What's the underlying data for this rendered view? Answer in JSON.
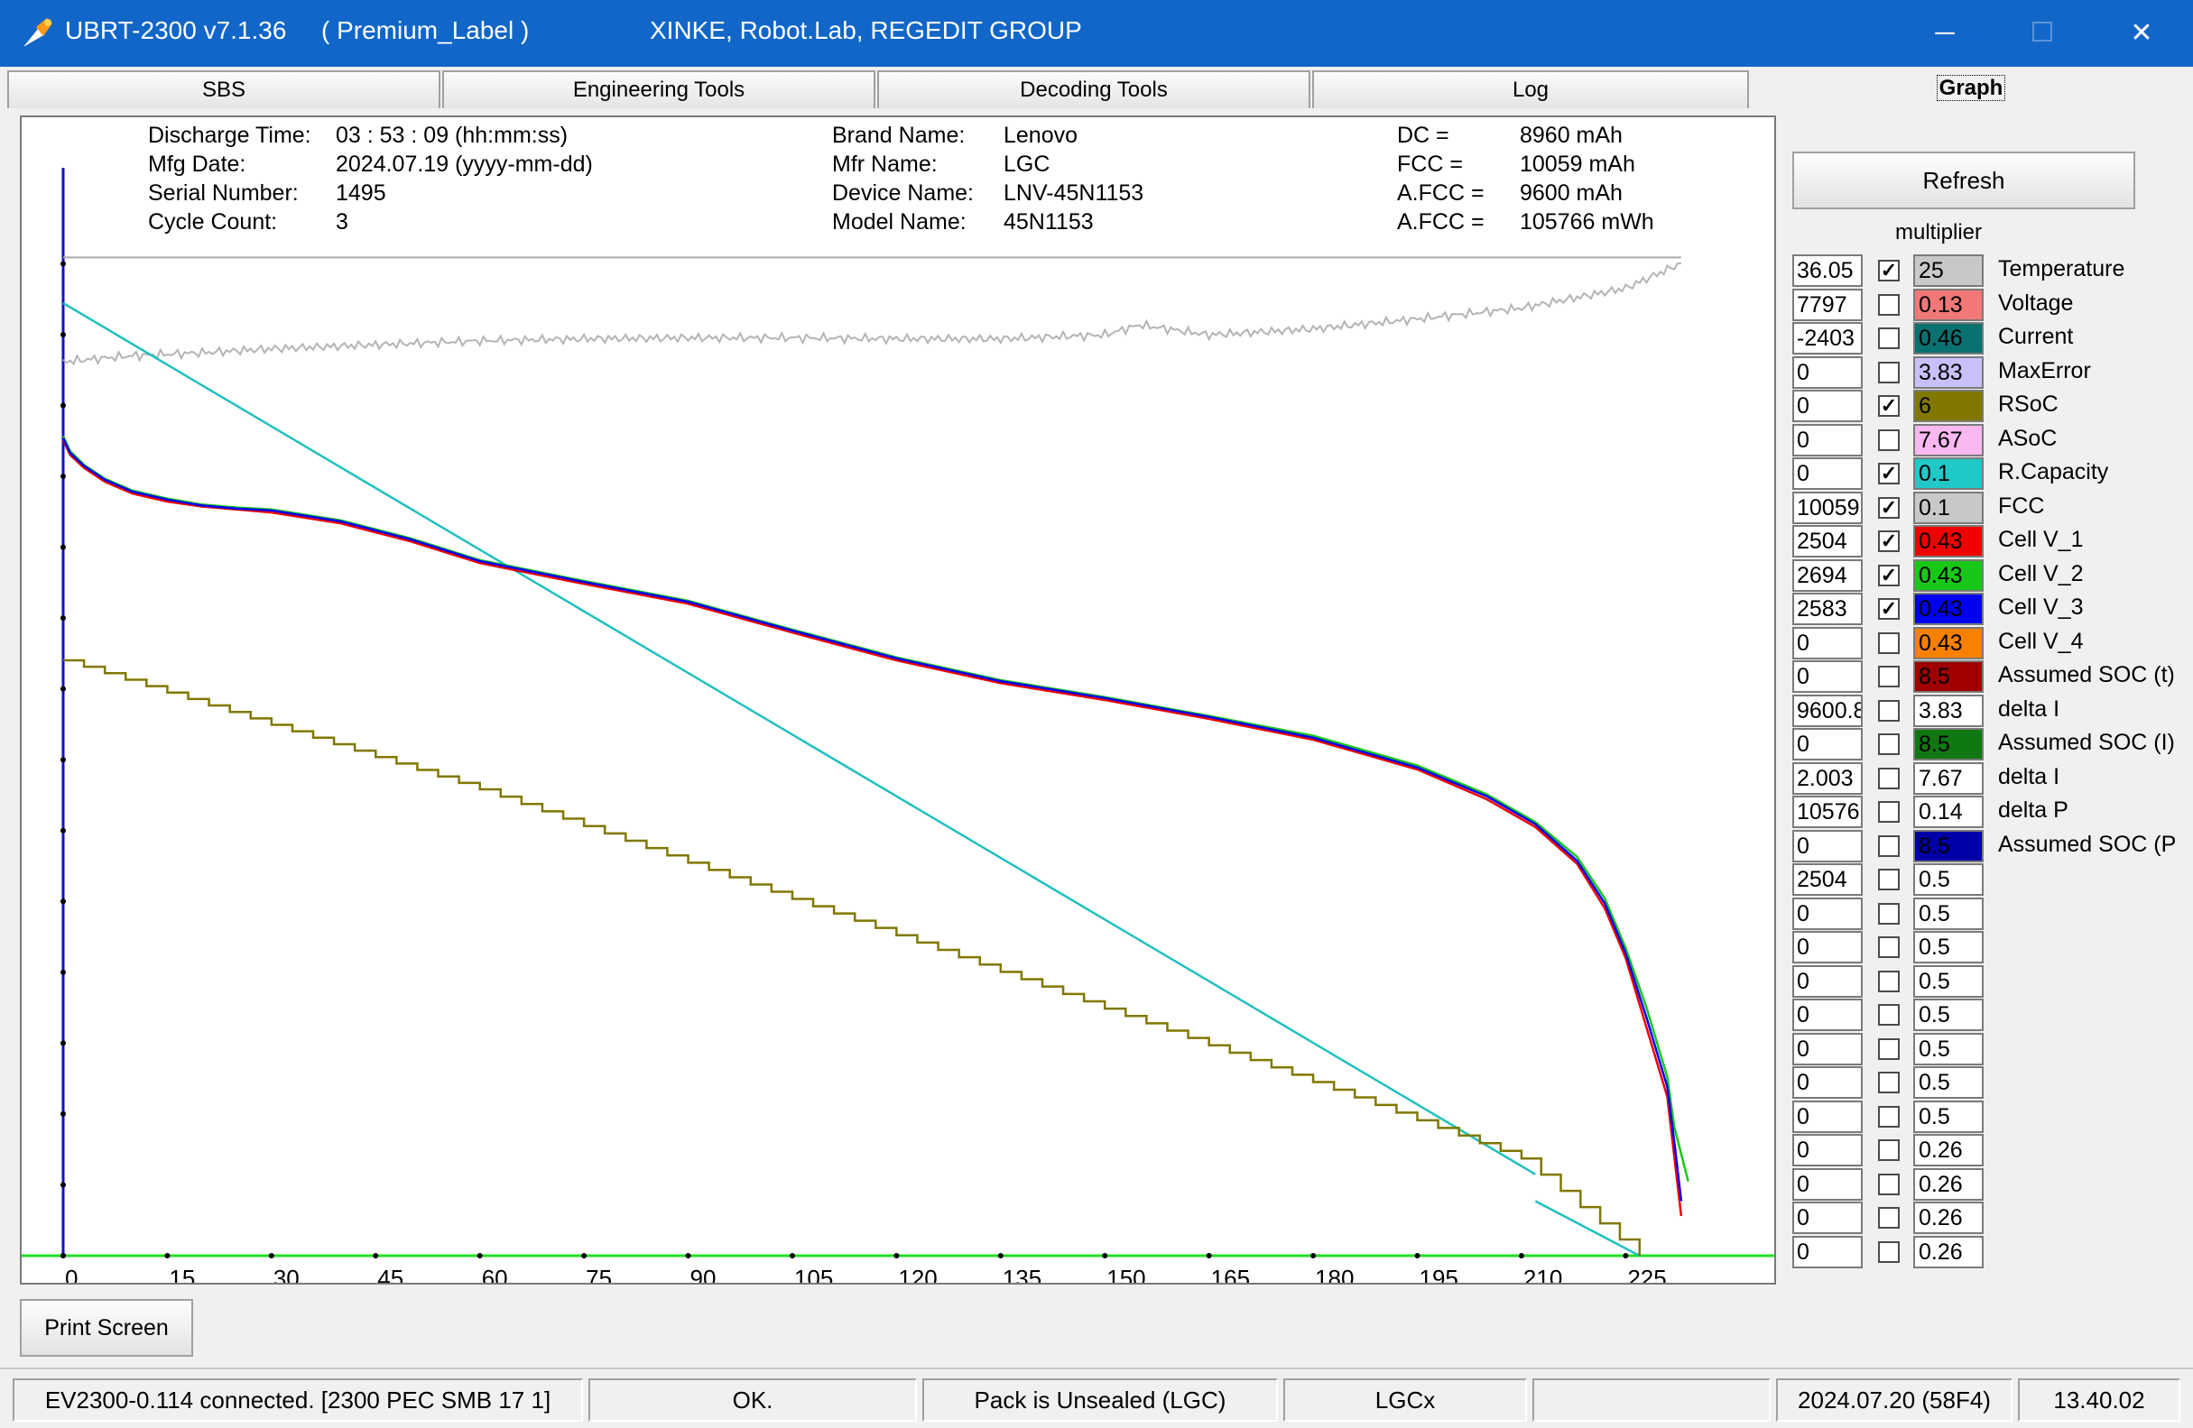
{
  "window": {
    "title": "UBRT-2300 v7.1.36",
    "label": "( Premium_Label )",
    "group": "XINKE,  Robot.Lab,  REGEDIT GROUP",
    "minimize": "─",
    "maximize": "☐",
    "close": "✕"
  },
  "tabs": [
    "SBS",
    "Engineering Tools",
    "Decoding Tools",
    "Log",
    "Graph"
  ],
  "info": {
    "discharge_time_label": "Discharge Time:",
    "discharge_time": "03 : 53 : 09 (hh:mm:ss)",
    "mfg_date_label": "Mfg Date:",
    "mfg_date": "2024.07.19 (yyyy-mm-dd)",
    "serial_label": "Serial Number:",
    "serial": "1495",
    "cycle_label": "Cycle Count:",
    "cycle": "3",
    "brand_label": "Brand Name:",
    "brand": "Lenovo",
    "mfr_label": "Mfr Name:",
    "mfr": "LGC",
    "device_label": "Device Name:",
    "device": "LNV-45N1153",
    "model_label": "Model Name:",
    "model": "45N1153",
    "dc_label": "DC =",
    "dc": "8960 mAh",
    "fcc_label": "FCC =",
    "fcc": "10059 mAh",
    "afcc_label": "A.FCC =",
    "afcc": "9600 mAh",
    "afcc2_label": "A.FCC =",
    "afcc2": "105766 mWh"
  },
  "refresh_label": "Refresh",
  "multiplier_label": "multiplier",
  "params": [
    {
      "value": "36.05",
      "checked": true,
      "mult": "25",
      "color": "#c8c8c8",
      "label": "Temperature"
    },
    {
      "value": "7797",
      "checked": false,
      "mult": "0.13",
      "color": "#f27878",
      "label": "Voltage"
    },
    {
      "value": "-2403",
      "checked": false,
      "mult": "0.46",
      "color": "#0a7070",
      "label": "Current"
    },
    {
      "value": "0",
      "checked": false,
      "mult": "3.83",
      "color": "#c8c0f8",
      "label": "MaxError"
    },
    {
      "value": "0",
      "checked": true,
      "mult": "6",
      "color": "#807800",
      "label": "RSoC"
    },
    {
      "value": "0",
      "checked": false,
      "mult": "7.67",
      "color": "#f8b8f0",
      "label": "ASoC"
    },
    {
      "value": "0",
      "checked": true,
      "mult": "0.1",
      "color": "#20c8c8",
      "label": "R.Capacity"
    },
    {
      "value": "10059",
      "checked": true,
      "mult": "0.1",
      "color": "#c8c8c8",
      "label": "FCC"
    },
    {
      "value": "2504",
      "checked": true,
      "mult": "0.43",
      "color": "#f00000",
      "label": "Cell V_1"
    },
    {
      "value": "2694",
      "checked": true,
      "mult": "0.43",
      "color": "#18c818",
      "label": "Cell V_2"
    },
    {
      "value": "2583",
      "checked": true,
      "mult": "0.43",
      "color": "#0000f0",
      "label": "Cell V_3"
    },
    {
      "value": "0",
      "checked": false,
      "mult": "0.43",
      "color": "#f88000",
      "label": "Cell V_4"
    },
    {
      "value": "0",
      "checked": false,
      "mult": "8.5",
      "color": "#a00000",
      "label": "Assumed SOC (t)"
    },
    {
      "value": "9600.8",
      "checked": false,
      "mult": "3.83",
      "color": "#ffffff",
      "label": "delta I"
    },
    {
      "value": "0",
      "checked": false,
      "mult": "8.5",
      "color": "#107810",
      "label": "Assumed SOC (I)"
    },
    {
      "value": "2.003",
      "checked": false,
      "mult": "7.67",
      "color": "#ffffff",
      "label": "delta I"
    },
    {
      "value": "10576",
      "checked": false,
      "mult": "0.14",
      "color": "#ffffff",
      "label": "delta P"
    },
    {
      "value": "0",
      "checked": false,
      "mult": "8.5",
      "color": "#0000a8",
      "label": "Assumed SOC (P"
    },
    {
      "value": "2504",
      "checked": false,
      "mult": "0.5",
      "color": "#ffffff",
      "label": ""
    },
    {
      "value": "0",
      "checked": false,
      "mult": "0.5",
      "color": "#ffffff",
      "label": ""
    },
    {
      "value": "0",
      "checked": false,
      "mult": "0.5",
      "color": "#ffffff",
      "label": ""
    },
    {
      "value": "0",
      "checked": false,
      "mult": "0.5",
      "color": "#ffffff",
      "label": ""
    },
    {
      "value": "0",
      "checked": false,
      "mult": "0.5",
      "color": "#ffffff",
      "label": ""
    },
    {
      "value": "0",
      "checked": false,
      "mult": "0.5",
      "color": "#ffffff",
      "label": ""
    },
    {
      "value": "0",
      "checked": false,
      "mult": "0.5",
      "color": "#ffffff",
      "label": ""
    },
    {
      "value": "0",
      "checked": false,
      "mult": "0.5",
      "color": "#ffffff",
      "label": ""
    },
    {
      "value": "0",
      "checked": false,
      "mult": "0.26",
      "color": "#ffffff",
      "label": ""
    },
    {
      "value": "0",
      "checked": false,
      "mult": "0.26",
      "color": "#ffffff",
      "label": ""
    },
    {
      "value": "0",
      "checked": false,
      "mult": "0.26",
      "color": "#ffffff",
      "label": ""
    },
    {
      "value": "0",
      "checked": false,
      "mult": "0.26",
      "color": "#ffffff",
      "label": ""
    }
  ],
  "print_label": "Print Screen",
  "status": {
    "connection": "EV2300-0.114 connected. [2300  PEC  SMB  17 1]",
    "result": "OK.",
    "seal": "Pack is Unsealed   (LGC)",
    "chem": "LGCx",
    "empty": "",
    "date": "2024.07.20  (58F4)",
    "time": "13.40.02"
  },
  "chart_data": {
    "type": "line",
    "xlabel": "",
    "ylabel": "",
    "x_ticks": [
      0,
      15,
      30,
      45,
      60,
      75,
      90,
      105,
      120,
      135,
      150,
      165,
      180,
      195,
      210,
      225
    ],
    "xlim": [
      0,
      236
    ],
    "ylim": [
      0,
      1000
    ],
    "grid": false,
    "series": [
      {
        "name": "FCC",
        "color": "#aaaaaa",
        "style": "flat",
        "x": [
          0,
          233
        ],
        "y": [
          1006,
          1006
        ]
      },
      {
        "name": "Temperature",
        "color": "#b4b4b4",
        "style": "noisy",
        "x": [
          0,
          10,
          20,
          30,
          45,
          60,
          75,
          90,
          105,
          120,
          135,
          150,
          155,
          165,
          180,
          195,
          210,
          225,
          233
        ],
        "y": [
          901,
          907,
          910,
          914,
          918,
          922,
          924,
          925,
          925,
          924,
          924,
          928,
          938,
          928,
          934,
          944,
          955,
          975,
          1000
        ]
      },
      {
        "name": "R.Capacity",
        "color": "#20c0c0",
        "style": "line",
        "x": [
          0,
          212,
          212,
          227
        ],
        "y": [
          960,
          82,
          55,
          0
        ]
      },
      {
        "name": "RSoC",
        "color": "#807800",
        "style": "steps",
        "x": [
          0,
          30,
          60,
          90,
          120,
          150,
          180,
          210,
          227
        ],
        "y": [
          600,
          535,
          470,
          396,
          323,
          249,
          175,
          98,
          0
        ]
      },
      {
        "name": "Cell V_1",
        "color": "#f00000",
        "style": "line",
        "x": [
          0,
          1,
          3,
          6,
          10,
          15,
          20,
          25,
          30,
          40,
          50,
          60,
          75,
          90,
          105,
          120,
          135,
          150,
          165,
          180,
          195,
          205,
          212,
          218,
          222,
          225,
          228,
          231,
          232,
          233
        ],
        "y": [
          822,
          807,
          794,
          780,
          768,
          760,
          755,
          752,
          749,
          738,
          720,
          698,
          677,
          657,
          628,
          600,
          577,
          560,
          541,
          520,
          490,
          460,
          432,
          395,
          350,
          300,
          230,
          160,
          100,
          40
        ]
      },
      {
        "name": "Cell V_2",
        "color": "#18c818",
        "style": "line",
        "x": [
          0,
          1,
          3,
          6,
          10,
          15,
          20,
          25,
          30,
          40,
          50,
          60,
          75,
          90,
          105,
          120,
          135,
          150,
          165,
          180,
          195,
          205,
          212,
          218,
          222,
          225,
          228,
          231,
          232,
          234
        ],
        "y": [
          826,
          811,
          797,
          783,
          771,
          763,
          757,
          754,
          752,
          741,
          723,
          701,
          680,
          660,
          631,
          603,
          580,
          563,
          544,
          524,
          494,
          465,
          437,
          402,
          360,
          310,
          250,
          180,
          130,
          75
        ]
      },
      {
        "name": "Cell V_3",
        "color": "#0000f0",
        "style": "line",
        "x": [
          0,
          1,
          3,
          6,
          10,
          15,
          20,
          25,
          30,
          40,
          50,
          60,
          75,
          90,
          105,
          120,
          135,
          150,
          165,
          180,
          195,
          205,
          212,
          218,
          222,
          225,
          228,
          231,
          232,
          233
        ],
        "y": [
          824,
          809,
          796,
          782,
          770,
          762,
          756,
          753,
          751,
          740,
          722,
          700,
          679,
          659,
          630,
          602,
          579,
          562,
          543,
          522,
          492,
          463,
          435,
          398,
          355,
          305,
          240,
          170,
          115,
          55
        ]
      }
    ]
  }
}
